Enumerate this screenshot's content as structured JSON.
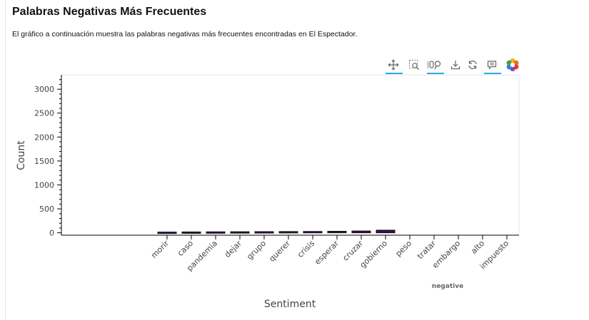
{
  "page": {
    "title": "Palabras Negativas Más Frecuentes",
    "description": "El gráfico a continuación muestra las palabras negativas más frecuentes encontradas en El Espectador."
  },
  "toolbar": {
    "tools": [
      {
        "name": "pan-tool",
        "icon": "move-arrows-icon",
        "active": true
      },
      {
        "name": "box-zoom-tool",
        "icon": "box-zoom-icon",
        "active": false
      },
      {
        "name": "wheel-zoom-tool",
        "icon": "wheel-zoom-icon",
        "active": true
      },
      {
        "name": "save-tool",
        "icon": "download-icon",
        "active": false
      },
      {
        "name": "reset-tool",
        "icon": "reset-icon",
        "active": false
      },
      {
        "name": "hover-tool",
        "icon": "hover-comment-icon",
        "active": true
      },
      {
        "name": "bokeh-logo",
        "icon": "bokeh-logo-icon",
        "active": false
      }
    ]
  },
  "chart_data": {
    "type": "bar",
    "xlabel": "Sentiment",
    "ylabel": "Count",
    "group_label": "negative",
    "categories": [
      "morir",
      "caso",
      "pandemia",
      "dejar",
      "grupo",
      "querer",
      "crisis",
      "esperar",
      "cruzar",
      "gobierno",
      "peso",
      "tratar",
      "embargo",
      "alto",
      "impuesto"
    ],
    "values": [
      15,
      18,
      20,
      22,
      24,
      26,
      28,
      32,
      38,
      55,
      null,
      null,
      null,
      null,
      null
    ],
    "ylim": [
      -50,
      3300
    ],
    "yticks": [
      0,
      500,
      1000,
      1500,
      2000,
      2500,
      3000
    ],
    "bar_color": "#3b0f4f",
    "bar_outline": "#111111",
    "grid": false
  }
}
